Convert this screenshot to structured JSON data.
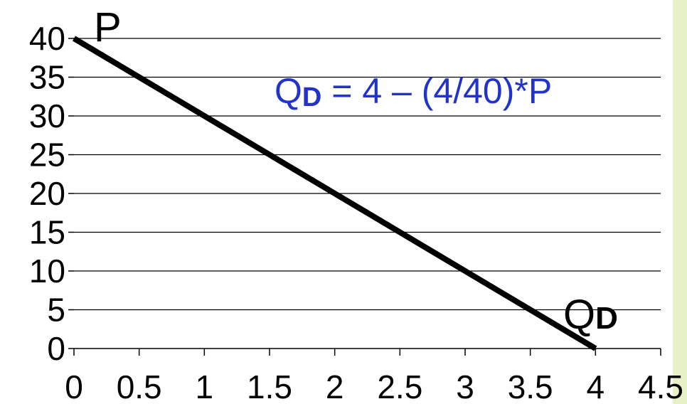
{
  "chart_data": {
    "type": "line",
    "title": "",
    "xlabel": "QD",
    "ylabel": "P",
    "x_ticks": [
      "0",
      "0.5",
      "1",
      "1.5",
      "2",
      "2.5",
      "3",
      "3.5",
      "4",
      "4.5"
    ],
    "y_ticks": [
      "0",
      "5",
      "10",
      "15",
      "20",
      "25",
      "30",
      "35",
      "40"
    ],
    "xlim": [
      0,
      4.5
    ],
    "ylim": [
      0,
      40
    ],
    "grid": "horizontal",
    "series": [
      {
        "x": [
          0,
          4
        ],
        "y": [
          40,
          0
        ],
        "color": "#000000"
      }
    ],
    "annotations": {
      "equation_main": "Q",
      "equation_sub": "D",
      "equation_rest": " =  4 – (4/40)*P",
      "equation_color": "#2233cc"
    },
    "axis_labels": {
      "y_label": "P",
      "x_label_main": "Q",
      "x_label_sub": "D"
    }
  },
  "colors": {
    "right_border": "#e8f0c8"
  }
}
